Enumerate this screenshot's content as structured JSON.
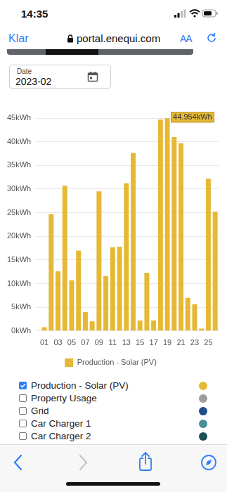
{
  "status_bar": {
    "time": "14:35"
  },
  "browser": {
    "done": "Klar",
    "url": "portal.enequi.com",
    "text_size": "AA"
  },
  "date_field": {
    "label": "Date",
    "value": "2023-02"
  },
  "chart_data": {
    "type": "bar",
    "categories": [
      "01",
      null,
      "03",
      null,
      "05",
      null,
      "07",
      null,
      "09",
      null,
      "11",
      null,
      "13",
      null,
      "15",
      null,
      "17",
      null,
      "19",
      null,
      "21",
      null,
      "23",
      null,
      "25",
      null
    ],
    "series": [
      {
        "name": "Production - Solar (PV)",
        "color": "#e5b935",
        "values": [
          0.8,
          24.7,
          12.6,
          30.7,
          10.7,
          17.0,
          4.0,
          2.0,
          29.5,
          11.6,
          17.7,
          17.8,
          31.2,
          37.6,
          2.2,
          12.3,
          2.2,
          44.7,
          44.954,
          41.0,
          39.7,
          7.0,
          5.6,
          0.5,
          32.2,
          25.2
        ]
      }
    ],
    "ylim": [
      0,
      45
    ],
    "yticks": [
      {
        "value": 0,
        "label": "0kWh"
      },
      {
        "value": 5,
        "label": "5kWh"
      },
      {
        "value": 10,
        "label": "10kWh"
      },
      {
        "value": 15,
        "label": "15kWh"
      },
      {
        "value": 20,
        "label": "20kWh"
      },
      {
        "value": 25,
        "label": "25kWh"
      },
      {
        "value": 30,
        "label": "30kWh"
      },
      {
        "value": 35,
        "label": "35kWh"
      },
      {
        "value": 40,
        "label": "40kWh"
      },
      {
        "value": 45,
        "label": "45kWh"
      }
    ],
    "annotations": [
      {
        "x": "19",
        "text": "44.954kWh"
      }
    ],
    "grid": true,
    "legend": "bottom"
  },
  "series_toggles": [
    {
      "label": "Production - Solar (PV)",
      "checked": true,
      "color": "#e5b935"
    },
    {
      "label": "Property Usage",
      "checked": false,
      "color": "#9e9e9e"
    },
    {
      "label": "Grid",
      "checked": false,
      "color": "#1f4e8c"
    },
    {
      "label": "Car Charger 1",
      "checked": false,
      "color": "#4a8f99"
    },
    {
      "label": "Car Charger 2",
      "checked": false,
      "color": "#1f4f57"
    }
  ]
}
